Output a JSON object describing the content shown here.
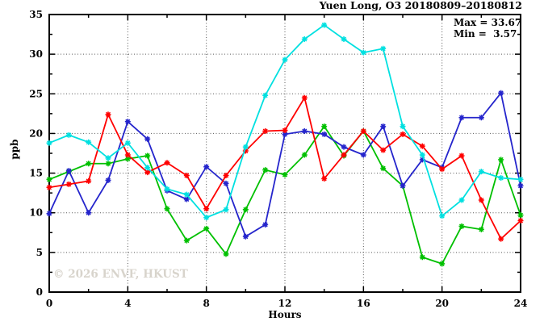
{
  "title": "Yuen Long, O3 20180809–20180812",
  "annotation": {
    "max_label": "Max = 33.67",
    "min_label": "Min =  3.57"
  },
  "watermark": "© 2026 ENVF, HKUST",
  "chart_data": {
    "type": "line",
    "title": "Yuen Long, O3 20180809–20180812",
    "xlabel": "Hours",
    "ylabel": "ppb",
    "xlim": [
      0,
      24
    ],
    "ylim": [
      0,
      35
    ],
    "grid": true,
    "legend_position": "none",
    "max_value": 33.67,
    "min_value": 3.57,
    "xticks": {
      "values": [
        0,
        4,
        8,
        12,
        16,
        20,
        24
      ],
      "labels": [
        "0",
        "4",
        "8",
        "12",
        "16",
        "20",
        "24"
      ]
    },
    "yticks": {
      "values": [
        0,
        5,
        10,
        15,
        20,
        25,
        30,
        35
      ],
      "labels": [
        "0",
        "5",
        "10",
        "15",
        "20",
        "25",
        "30",
        "35"
      ]
    },
    "xticks_minor": [
      2,
      6,
      10,
      14,
      18,
      22
    ],
    "yticks_minor": [
      2.5,
      7.5,
      12.5,
      17.5,
      22.5,
      27.5,
      32.5
    ],
    "grid_x": [
      4,
      8,
      12,
      16,
      20
    ],
    "grid_y": [
      5,
      10,
      15,
      20,
      25,
      30
    ],
    "x": [
      0,
      1,
      2,
      3,
      4,
      5,
      6,
      7,
      8,
      9,
      10,
      11,
      12,
      13,
      14,
      15,
      16,
      17,
      18,
      19,
      20,
      21,
      22,
      23,
      24
    ],
    "series": [
      {
        "name": "green",
        "color": "#00c000",
        "values": [
          14.2,
          15.2,
          16.2,
          16.2,
          16.8,
          17.2,
          10.5,
          6.5,
          8.0,
          4.8,
          10.4,
          15.4,
          14.8,
          17.3,
          20.9,
          17.2,
          20.3,
          15.6,
          13.4,
          4.4,
          3.57,
          8.3,
          7.9,
          16.7,
          9.7
        ]
      },
      {
        "name": "blue",
        "color": "#2525cc",
        "values": [
          9.9,
          15.3,
          10.0,
          14.1,
          21.5,
          19.3,
          12.8,
          11.7,
          15.8,
          13.7,
          7.0,
          8.5,
          19.9,
          20.3,
          19.9,
          18.3,
          17.3,
          20.9,
          13.4,
          16.7,
          15.7,
          22.0,
          22.0,
          25.1,
          13.4
        ]
      },
      {
        "name": "red",
        "color": "#ff0000",
        "values": [
          13.2,
          13.6,
          14.0,
          22.4,
          17.3,
          15.1,
          16.3,
          14.7,
          10.5,
          14.7,
          17.8,
          20.3,
          20.4,
          24.5,
          14.3,
          17.3,
          20.3,
          17.9,
          19.9,
          18.4,
          15.5,
          17.2,
          11.6,
          6.7,
          9.0
        ]
      },
      {
        "name": "cyan",
        "color": "#00e0e0",
        "values": [
          18.8,
          19.8,
          18.9,
          16.9,
          18.8,
          15.7,
          13.0,
          12.3,
          9.4,
          10.4,
          18.3,
          24.8,
          29.3,
          31.9,
          33.67,
          31.9,
          30.2,
          30.7,
          20.9,
          17.3,
          9.6,
          11.6,
          15.2,
          14.4,
          14.2
        ]
      }
    ]
  }
}
